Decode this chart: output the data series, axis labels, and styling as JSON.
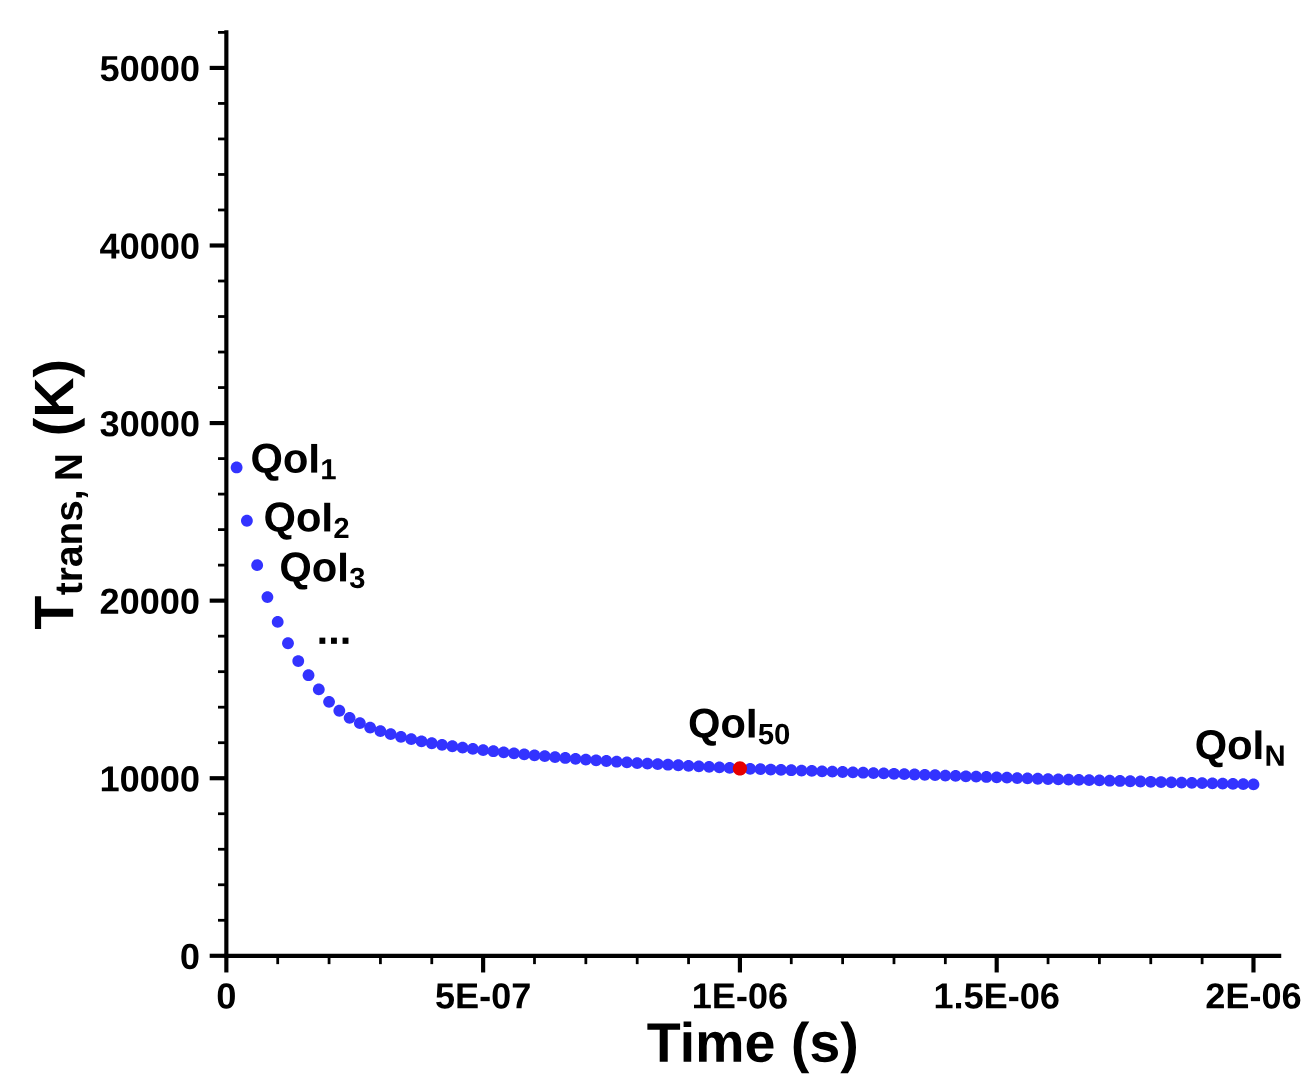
{
  "chart_data": {
    "type": "scatter",
    "xlabel": "Time (s)",
    "ylabel": "T$_{trans,N}$ (K)",
    "xlim": [
      0,
      2.05e-06
    ],
    "ylim": [
      0,
      52000
    ],
    "xticks": [
      0,
      {
        "value": 5e-07,
        "label": "5E-07"
      },
      {
        "value": 1e-06,
        "label": "1E-06"
      },
      {
        "value": 1.5e-06,
        "label": "1.5E-06"
      },
      {
        "value": 2e-06,
        "label": "2E-06"
      }
    ],
    "yticks": [
      0,
      10000,
      20000,
      30000,
      40000,
      50000
    ],
    "grid": false,
    "marker": "circle",
    "x": [
      2e-08,
      4e-08,
      6e-08,
      8e-08,
      1e-07,
      1.2e-07,
      1.4e-07,
      1.6e-07,
      1.8e-07,
      2e-07,
      2.2e-07,
      2.4e-07,
      2.6e-07,
      2.8e-07,
      3e-07,
      3.2e-07,
      3.4e-07,
      3.6e-07,
      3.8e-07,
      4e-07,
      4.2e-07,
      4.4e-07,
      4.6e-07,
      4.8e-07,
      5e-07,
      5.2e-07,
      5.4e-07,
      5.6e-07,
      5.8e-07,
      6e-07,
      6.2e-07,
      6.4e-07,
      6.6e-07,
      6.8e-07,
      7e-07,
      7.2e-07,
      7.4e-07,
      7.6e-07,
      7.8e-07,
      8e-07,
      8.2e-07,
      8.4e-07,
      8.6e-07,
      8.8e-07,
      9e-07,
      9.2e-07,
      9.4e-07,
      9.6e-07,
      9.8e-07,
      1e-06,
      1.02e-06,
      1.04e-06,
      1.06e-06,
      1.08e-06,
      1.1e-06,
      1.12e-06,
      1.14e-06,
      1.16e-06,
      1.18e-06,
      1.2e-06,
      1.22e-06,
      1.24e-06,
      1.26e-06,
      1.28e-06,
      1.3e-06,
      1.32e-06,
      1.34e-06,
      1.36e-06,
      1.38e-06,
      1.4e-06,
      1.42e-06,
      1.44e-06,
      1.46e-06,
      1.48e-06,
      1.5e-06,
      1.52e-06,
      1.54e-06,
      1.56e-06,
      1.58e-06,
      1.6e-06,
      1.62e-06,
      1.64e-06,
      1.66e-06,
      1.68e-06,
      1.7e-06,
      1.72e-06,
      1.74e-06,
      1.76e-06,
      1.78e-06,
      1.8e-06,
      1.82e-06,
      1.84e-06,
      1.86e-06,
      1.88e-06,
      1.9e-06,
      1.92e-06,
      1.94e-06,
      1.96e-06,
      1.98e-06,
      2e-06
    ],
    "series": [
      {
        "color": "#3333ff",
        "values": [
          27500,
          24500,
          22000,
          20200,
          18800,
          17600,
          16600,
          15800,
          15000,
          14300,
          13800,
          13400,
          13100,
          12850,
          12650,
          12480,
          12330,
          12200,
          12080,
          11970,
          11880,
          11800,
          11720,
          11650,
          11580,
          11520,
          11460,
          11400,
          11340,
          11290,
          11240,
          11190,
          11140,
          11090,
          11050,
          11010,
          10970,
          10930,
          10890,
          10850,
          10820,
          10790,
          10760,
          10730,
          10700,
          10670,
          10640,
          10610,
          10580,
          null,
          10530,
          10510,
          10490,
          10470,
          10450,
          10430,
          10410,
          10390,
          10370,
          10350,
          10330,
          10310,
          10290,
          10270,
          10250,
          10230,
          10210,
          10190,
          10170,
          10150,
          10130,
          10110,
          10090,
          10070,
          10050,
          10030,
          10010,
          9990,
          9970,
          9950,
          9935,
          9920,
          9905,
          9890,
          9875,
          9860,
          9845,
          9830,
          9815,
          9800,
          9785,
          9770,
          9755,
          9740,
          9725,
          9710,
          9695,
          9680,
          9665,
          9650
        ]
      },
      {
        "color": "#e60000",
        "x": [
          1e-06
        ],
        "values": [
          10550
        ]
      }
    ],
    "annotations": [
      {
        "text": "QoI$_{1}$",
        "x": 2e-08,
        "y": 27500
      },
      {
        "text": "QoI$_{2}$",
        "x": 4e-08,
        "y": 24500
      },
      {
        "text": "QoI$_{3}$",
        "x": 6e-08,
        "y": 22000
      },
      {
        "text": "...",
        "x": 1e-07,
        "y": 18800
      },
      {
        "text": "QoI$_{50}$",
        "x": 1e-06,
        "y": 10550
      },
      {
        "text": "QoI$_{N}$",
        "x": 2e-06,
        "y": 9650
      }
    ]
  }
}
